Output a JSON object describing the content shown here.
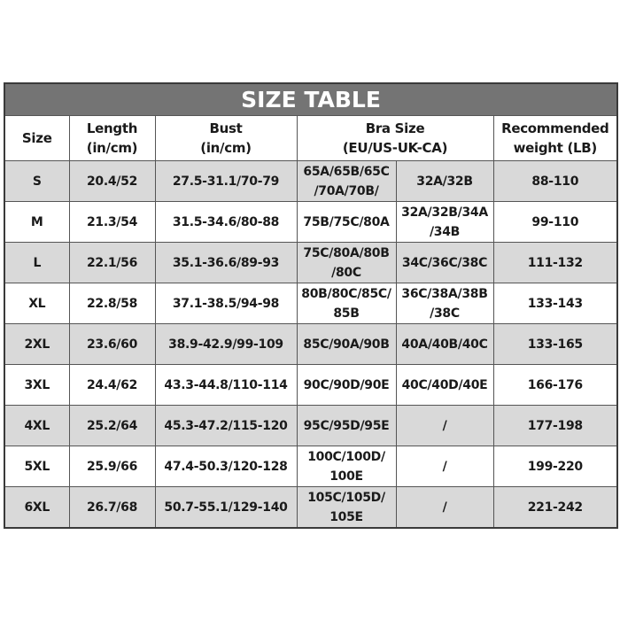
{
  "title": "SIZE TABLE",
  "headers": {
    "size": "Size",
    "length": "Length\n(in/cm)",
    "bust": "Bust\n(in/cm)",
    "bra": "Bra Size\n(EU/US-UK-CA)",
    "weight": "Recommended\nweight (LB)"
  },
  "rows": [
    {
      "size": "S",
      "length": "20.4/52",
      "bust": "27.5-31.1/70-79",
      "bra_eu": "65A/65B/65C\n/70A/70B/",
      "bra_us": "32A/32B",
      "weight": "88-110"
    },
    {
      "size": "M",
      "length": "21.3/54",
      "bust": "31.5-34.6/80-88",
      "bra_eu": "75B/75C/80A",
      "bra_us": "32A/32B/34A\n/34B",
      "weight": "99-110"
    },
    {
      "size": "L",
      "length": "22.1/56",
      "bust": "35.1-36.6/89-93",
      "bra_eu": "75C/80A/80B\n/80C",
      "bra_us": "34C/36C/38C",
      "weight": "111-132"
    },
    {
      "size": "XL",
      "length": "22.8/58",
      "bust": "37.1-38.5/94-98",
      "bra_eu": "80B/80C/85C/\n85B",
      "bra_us": "36C/38A/38B\n/38C",
      "weight": "133-143"
    },
    {
      "size": "2XL",
      "length": "23.6/60",
      "bust": "38.9-42.9/99-109",
      "bra_eu": "85C/90A/90B",
      "bra_us": "40A/40B/40C",
      "weight": "133-165"
    },
    {
      "size": "3XL",
      "length": "24.4/62",
      "bust": "43.3-44.8/110-114",
      "bra_eu": "90C/90D/90E",
      "bra_us": "40C/40D/40E",
      "weight": "166-176"
    },
    {
      "size": "4XL",
      "length": "25.2/64",
      "bust": "45.3-47.2/115-120",
      "bra_eu": "95C/95D/95E",
      "bra_us": "/",
      "weight": "177-198"
    },
    {
      "size": "5XL",
      "length": "25.9/66",
      "bust": "47.4-50.3/120-128",
      "bra_eu": "100C/100D/\n100E",
      "bra_us": "/",
      "weight": "199-220"
    },
    {
      "size": "6XL",
      "length": "26.7/68",
      "bust": "50.7-55.1/129-140",
      "bra_eu": "105C/105D/\n105E",
      "bra_us": "/",
      "weight": "221-242"
    }
  ],
  "colors": {
    "title_bg": "#747474",
    "alt_row_bg": "#d9d9d9"
  }
}
